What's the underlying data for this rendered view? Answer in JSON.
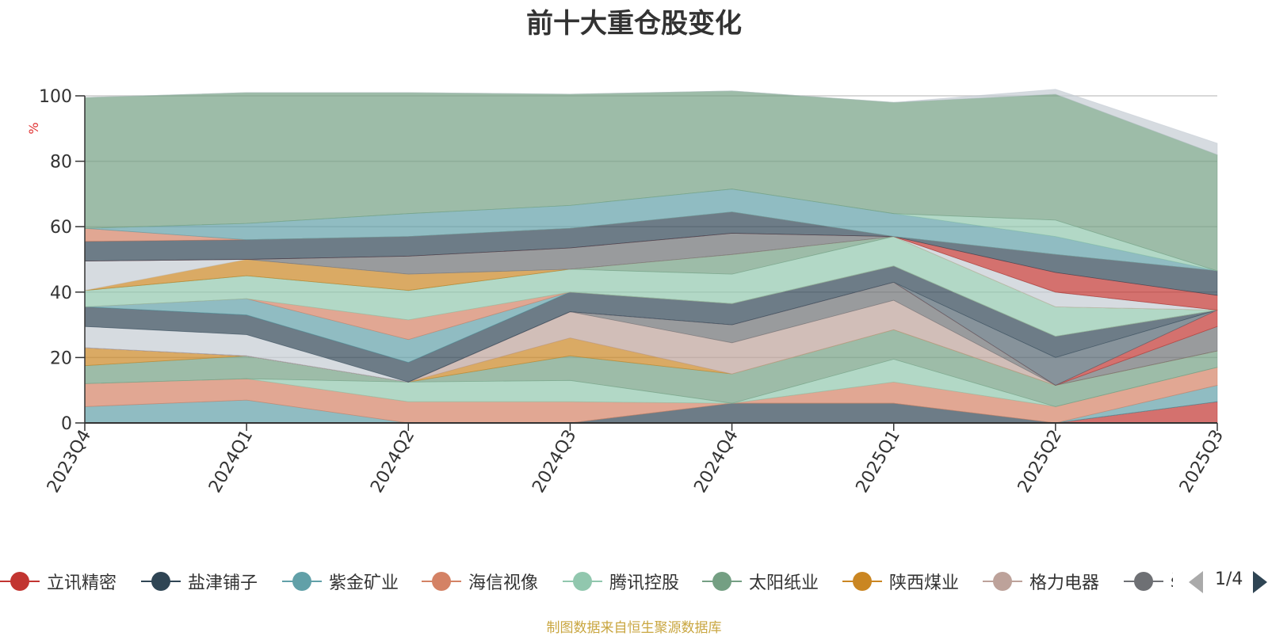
{
  "chart_data": {
    "type": "area",
    "stacked": true,
    "title": "前十大重仓股变化",
    "ylabel": "%",
    "ylim": [
      0,
      100
    ],
    "yticks": [
      0,
      20,
      40,
      60,
      80,
      100
    ],
    "grid": true,
    "categories": [
      "2023Q4",
      "2024Q1",
      "2024Q2",
      "2024Q3",
      "2024Q4",
      "2025Q1",
      "2025Q2",
      "2025Q3"
    ],
    "series": [
      {
        "name": "立讯精密",
        "color": "#c23531",
        "values": [
          0,
          0,
          0,
          0,
          0,
          0,
          0,
          6.5
        ]
      },
      {
        "name": "盐津铺子",
        "color": "#2f4554",
        "values": [
          0,
          0,
          0,
          0,
          6,
          6,
          0,
          0
        ]
      },
      {
        "name": "紫金矿业",
        "color": "#61a0a8",
        "values": [
          5,
          7,
          0,
          0,
          0,
          0,
          0,
          5
        ]
      },
      {
        "name": "海信视像",
        "color": "#d48265",
        "values": [
          7,
          6.5,
          6.5,
          6.5,
          0,
          6.5,
          5,
          5.5
        ]
      },
      {
        "name": "腾讯控股",
        "color": "#91c7ae",
        "values": [
          0,
          0,
          6,
          6.5,
          0,
          7,
          0,
          0
        ]
      },
      {
        "name": "太阳纸业",
        "color": "#749f83",
        "values": [
          5.5,
          7,
          0,
          7.5,
          9,
          9,
          6.5,
          5
        ]
      },
      {
        "name": "陕西煤业",
        "color": "#ca8622",
        "values": [
          5.5,
          0,
          0,
          5.5,
          0,
          0,
          0,
          0
        ]
      },
      {
        "name": "格力电器",
        "color": "#bda29a",
        "values": [
          0,
          0,
          0,
          8,
          9.5,
          9,
          0,
          0
        ]
      },
      {
        "name": "",
        "color": "#6e7074",
        "values": [
          0,
          0,
          0,
          0,
          5.5,
          5.5,
          0,
          7.5
        ]
      },
      {
        "name": "",
        "color": "#c23531",
        "values": [
          0,
          0,
          0,
          0,
          0,
          0,
          0,
          5
        ]
      },
      {
        "name": "",
        "color": "#546570",
        "values": [
          0,
          0,
          0,
          0,
          0,
          0,
          8.5,
          0
        ]
      },
      {
        "name": "",
        "color": "#c4ccd3",
        "values": [
          6.5,
          6.5,
          0,
          0,
          0,
          0,
          0,
          0
        ]
      },
      {
        "name": "",
        "color": "#2f4554",
        "values": [
          6,
          6,
          6,
          6,
          6.5,
          5,
          6.5,
          0
        ]
      },
      {
        "name": "",
        "color": "#61a0a8",
        "values": [
          0,
          5,
          7,
          0,
          0,
          0,
          0,
          0
        ]
      },
      {
        "name": "",
        "color": "#d48265",
        "values": [
          0,
          0,
          6,
          0,
          0,
          0,
          0,
          0
        ]
      },
      {
        "name": "",
        "color": "#91c7ae",
        "values": [
          5,
          7,
          9,
          7,
          9,
          9,
          9,
          0
        ]
      },
      {
        "name": "",
        "color": "#c23531",
        "values": [
          0,
          0,
          0,
          0,
          0,
          0,
          0,
          0
        ]
      },
      {
        "name": "",
        "color": "#749f83",
        "values": [
          0,
          0,
          0,
          0,
          6,
          0,
          0,
          0
        ]
      },
      {
        "name": "",
        "color": "#ca8622",
        "values": [
          0,
          5,
          5,
          0,
          0,
          0,
          0,
          0
        ]
      },
      {
        "name": "",
        "color": "#c4ccd3",
        "values": [
          9,
          0,
          0,
          0,
          0,
          0,
          4.5,
          0
        ]
      },
      {
        "name": "",
        "color": "#bda29a",
        "values": [
          0,
          0,
          0,
          0,
          0,
          0,
          0,
          0
        ]
      },
      {
        "name": "",
        "color": "#6e7074",
        "values": [
          0,
          0,
          5.5,
          6.5,
          6.5,
          0,
          0,
          0
        ]
      },
      {
        "name": "",
        "color": "#c23531",
        "values": [
          0,
          0,
          0,
          0,
          0,
          0,
          6,
          4.5
        ]
      },
      {
        "name": "",
        "color": "#546570",
        "values": [
          0,
          0,
          0,
          0,
          0,
          0,
          0,
          0
        ]
      },
      {
        "name": "",
        "color": "#c4ccd3",
        "values": [
          0,
          0,
          0,
          0,
          0,
          0,
          0,
          0
        ]
      },
      {
        "name": "",
        "color": "#749f83",
        "values": [
          0,
          0,
          0,
          0,
          0,
          0,
          0,
          0
        ]
      },
      {
        "name": "",
        "color": "#2f4554",
        "values": [
          6,
          6,
          6,
          6,
          6.5,
          0,
          5.5,
          7.5
        ]
      },
      {
        "name": "",
        "color": "#d48265",
        "values": [
          4,
          0,
          0,
          0,
          0,
          0,
          0,
          0
        ]
      },
      {
        "name": "",
        "color": "#61a0a8",
        "values": [
          0,
          5,
          7,
          7,
          7,
          7,
          5.5,
          0
        ]
      },
      {
        "name": "",
        "color": "#91c7ae",
        "values": [
          0,
          0,
          0,
          0,
          0,
          0,
          5,
          0
        ]
      },
      {
        "name": "",
        "color": "#749f83",
        "values": [
          40,
          40,
          37,
          34,
          30,
          34,
          38.5,
          35.5
        ]
      },
      {
        "name": "",
        "color": "#c4ccd3",
        "values": [
          0,
          0,
          0,
          0,
          0,
          0,
          1.5,
          3.5
        ]
      }
    ]
  },
  "legend": {
    "items": [
      {
        "label": "立讯精密",
        "color": "#c23531"
      },
      {
        "label": "盐津铺子",
        "color": "#2f4554"
      },
      {
        "label": "紫金矿业",
        "color": "#61a0a8"
      },
      {
        "label": "海信视像",
        "color": "#d48265"
      },
      {
        "label": "腾讯控股",
        "color": "#91c7ae"
      },
      {
        "label": "太阳纸业",
        "color": "#749f83"
      },
      {
        "label": "陕西煤业",
        "color": "#ca8622"
      },
      {
        "label": "格力电器",
        "color": "#bda29a"
      },
      {
        "label": "š",
        "color": "#6e7074"
      }
    ],
    "page_indicator": "1/4"
  },
  "source_note": "制图数据来自恒生聚源数据库"
}
